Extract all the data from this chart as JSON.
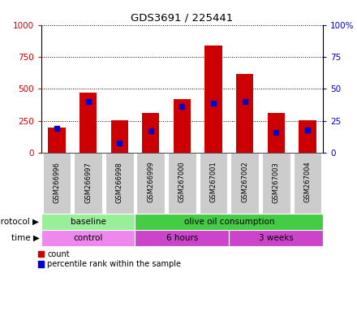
{
  "title": "GDS3691 / 225441",
  "samples": [
    "GSM266996",
    "GSM266997",
    "GSM266998",
    "GSM266999",
    "GSM267000",
    "GSM267001",
    "GSM267002",
    "GSM267003",
    "GSM267004"
  ],
  "count_values": [
    195,
    470,
    255,
    310,
    420,
    840,
    620,
    310,
    255
  ],
  "percentile_values": [
    19,
    40,
    8,
    17,
    36,
    39,
    40,
    16,
    18
  ],
  "left_ylim": [
    0,
    1000
  ],
  "right_ylim": [
    0,
    100
  ],
  "left_yticks": [
    0,
    250,
    500,
    750,
    1000
  ],
  "right_yticks": [
    0,
    25,
    50,
    75,
    100
  ],
  "left_yticklabels": [
    "0",
    "250",
    "500",
    "750",
    "1000"
  ],
  "right_yticklabels": [
    "0",
    "25",
    "50",
    "75",
    "100%"
  ],
  "bar_color": "#cc0000",
  "percentile_color": "#0000cc",
  "protocol_labels": [
    {
      "text": "baseline",
      "start": 0,
      "end": 3,
      "color": "#99ee99"
    },
    {
      "text": "olive oil consumption",
      "start": 3,
      "end": 9,
      "color": "#44cc44"
    }
  ],
  "time_labels": [
    {
      "text": "control",
      "start": 0,
      "end": 3,
      "color": "#ee88ee"
    },
    {
      "text": "6 hours",
      "start": 3,
      "end": 6,
      "color": "#cc44cc"
    },
    {
      "text": "3 weeks",
      "start": 6,
      "end": 9,
      "color": "#cc44cc"
    }
  ],
  "legend_count_label": "count",
  "legend_percentile_label": "percentile rank within the sample",
  "left_axis_color": "#cc0000",
  "right_axis_color": "#0000cc",
  "tick_label_bg": "#cccccc"
}
